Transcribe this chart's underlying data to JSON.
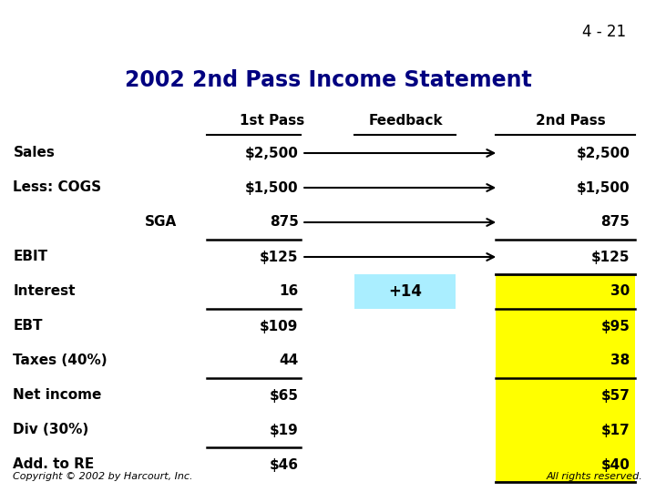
{
  "slide_number": "4 - 21",
  "title": "2002 2nd Pass Income Statement",
  "title_bg": "#b8f4f4",
  "title_border": "#ff00ff",
  "title_color": "#000080",
  "col_headers": [
    "1st Pass",
    "Feedback",
    "2nd Pass"
  ],
  "rows": [
    {
      "label": "Sales",
      "indent": false,
      "first": "$2,500",
      "feedback": "",
      "second": "$2,500",
      "arrow": true,
      "line_above_first": false,
      "line_above_second": false,
      "highlight_second": false,
      "highlight_feedback": false
    },
    {
      "label": "Less: COGS",
      "indent": false,
      "first": "$1,500",
      "feedback": "",
      "second": "$1,500",
      "arrow": true,
      "line_above_first": false,
      "line_above_second": false,
      "highlight_second": false,
      "highlight_feedback": false
    },
    {
      "label": "SGA",
      "indent": true,
      "first": "875",
      "feedback": "",
      "second": "875",
      "arrow": true,
      "line_above_first": false,
      "line_above_second": false,
      "highlight_second": false,
      "highlight_feedback": false
    },
    {
      "label": "EBIT",
      "indent": false,
      "first": "$125",
      "feedback": "",
      "second": "$125",
      "arrow": true,
      "line_above_first": true,
      "line_above_second": true,
      "highlight_second": false,
      "highlight_feedback": false
    },
    {
      "label": "Interest",
      "indent": false,
      "first": "16",
      "feedback": "+14",
      "second": "30",
      "arrow": false,
      "line_above_first": false,
      "line_above_second": false,
      "highlight_second": true,
      "highlight_feedback": true
    },
    {
      "label": "EBT",
      "indent": false,
      "first": "$109",
      "feedback": "",
      "second": "$95",
      "arrow": false,
      "line_above_first": true,
      "line_above_second": true,
      "highlight_second": true,
      "highlight_feedback": false
    },
    {
      "label": "Taxes (40%)",
      "indent": false,
      "first": "44",
      "feedback": "",
      "second": "38",
      "arrow": false,
      "line_above_first": false,
      "line_above_second": false,
      "highlight_second": true,
      "highlight_feedback": false
    },
    {
      "label": "Net income",
      "indent": false,
      "first": "$65",
      "feedback": "",
      "second": "$57",
      "arrow": false,
      "line_above_first": true,
      "line_above_second": true,
      "highlight_second": true,
      "highlight_feedback": false
    },
    {
      "label": "Div (30%)",
      "indent": false,
      "first": "$19",
      "feedback": "",
      "second": "$17",
      "arrow": false,
      "line_above_first": false,
      "line_above_second": false,
      "highlight_second": true,
      "highlight_feedback": false
    },
    {
      "label": "Add. to RE",
      "indent": false,
      "first": "$46",
      "feedback": "",
      "second": "$40",
      "arrow": false,
      "line_above_first": true,
      "line_above_second": false,
      "highlight_second": true,
      "highlight_feedback": false
    }
  ],
  "yellow": "#ffff00",
  "cyan_light": "#aaeeff",
  "footer_left": "Copyright © 2002 by Harcourt, Inc.",
  "footer_right": "All rights reserved.",
  "bg_color": "#ffffff"
}
